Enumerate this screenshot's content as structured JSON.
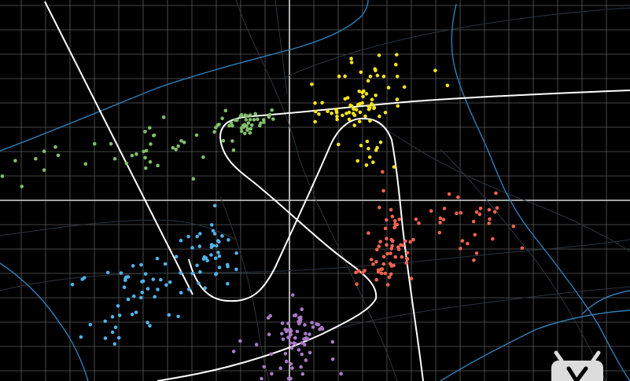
{
  "view": {
    "background_color": "#000000",
    "grid": {
      "fine_color": "#5a5a5a",
      "major_color": "#d9d9d9"
    },
    "rivers_color": "#2f7fb8",
    "roads_color": "#2a3540",
    "route_color": "#ffffff"
  },
  "clusters": [
    {
      "name": "green-cluster",
      "color": "#7fbf6a"
    },
    {
      "name": "yellow-cluster",
      "color": "#f4e31b"
    },
    {
      "name": "red-cluster",
      "color": "#f0634f"
    },
    {
      "name": "blue-cluster",
      "color": "#4fb3e8"
    },
    {
      "name": "purple-cluster",
      "color": "#a879c8"
    }
  ],
  "watermark": {
    "icon": "tv-logo-icon",
    "color": "#dcdcdc"
  }
}
